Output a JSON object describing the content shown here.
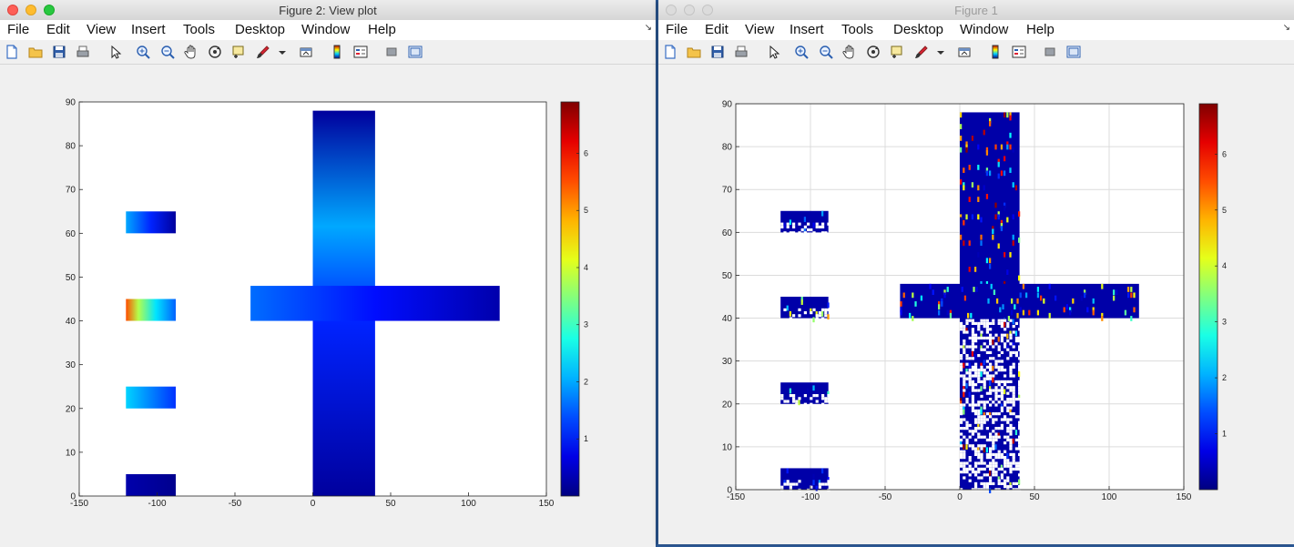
{
  "windows": [
    {
      "title": "Figure 2: View plot",
      "menus": [
        "File",
        "Edit",
        "View",
        "Insert",
        "Tools",
        "Desktop",
        "Window",
        "Help"
      ],
      "axes": {
        "x_ticks": [
          "-150",
          "-100",
          "-50",
          "0",
          "50",
          "100",
          "150"
        ],
        "y_ticks": [
          "0",
          "10",
          "20",
          "30",
          "40",
          "50",
          "60",
          "70",
          "80",
          "90"
        ],
        "grid": false
      },
      "colorbar_ticks": [
        "1",
        "2",
        "3",
        "4",
        "5",
        "6"
      ]
    },
    {
      "title": "Figure 1",
      "menus": [
        "File",
        "Edit",
        "View",
        "Insert",
        "Tools",
        "Desktop",
        "Window",
        "Help"
      ],
      "axes": {
        "x_ticks": [
          "-150",
          "-100",
          "-50",
          "0",
          "50",
          "100",
          "150"
        ],
        "y_ticks": [
          "0",
          "10",
          "20",
          "30",
          "40",
          "50",
          "60",
          "70",
          "80",
          "90"
        ],
        "grid": true
      },
      "colorbar_ticks": [
        "1",
        "2",
        "3",
        "4",
        "5",
        "6"
      ]
    }
  ],
  "toolbar_icons": [
    "new-figure-icon",
    "open-file-icon",
    "save-icon",
    "print-icon",
    "pointer-icon",
    "zoom-in-icon",
    "zoom-out-icon",
    "pan-icon",
    "rotate-3d-icon",
    "data-cursor-icon",
    "brush-icon",
    "brush-dropdown-icon",
    "link-plot-icon",
    "insert-colorbar-icon",
    "insert-legend-icon",
    "hide-plot-tools-icon",
    "show-plot-tools-icon"
  ],
  "chart_data": [
    {
      "type": "heatmap",
      "title": "",
      "xlabel": "",
      "ylabel": "",
      "xlim": [
        -150,
        150
      ],
      "ylim": [
        0,
        90
      ],
      "clim": [
        0,
        6.9
      ],
      "colormap": "jet",
      "grid": false,
      "regions": [
        {
          "x": [
            -120,
            -88
          ],
          "y": [
            0,
            5
          ],
          "value_range": [
            0.1,
            0.3
          ]
        },
        {
          "x": [
            -120,
            -88
          ],
          "y": [
            20,
            25
          ],
          "value_range": [
            1.2,
            2.3
          ]
        },
        {
          "x": [
            -120,
            -88
          ],
          "y": [
            40,
            45
          ],
          "value_range": [
            1.5,
            5.5
          ]
        },
        {
          "x": [
            -120,
            -88
          ],
          "y": [
            60,
            65
          ],
          "value_range": [
            0.2,
            2.0
          ]
        },
        {
          "x": [
            0,
            40
          ],
          "y": [
            0,
            88
          ],
          "value_range": [
            0.2,
            2.0
          ]
        },
        {
          "x": [
            -40,
            120
          ],
          "y": [
            40,
            48
          ],
          "value_range": [
            0.3,
            1.6
          ]
        }
      ]
    },
    {
      "type": "heatmap",
      "title": "",
      "xlabel": "",
      "ylabel": "",
      "xlim": [
        -150,
        150
      ],
      "ylim": [
        0,
        90
      ],
      "clim": [
        0,
        6.9
      ],
      "colormap": "jet",
      "grid": true,
      "regions": [
        {
          "x": [
            -120,
            -88
          ],
          "y": [
            0,
            5
          ],
          "value_range": [
            0.2,
            2.0
          ]
        },
        {
          "x": [
            -120,
            -88
          ],
          "y": [
            20,
            25
          ],
          "value_range": [
            0.2,
            4.0
          ]
        },
        {
          "x": [
            -120,
            -88
          ],
          "y": [
            40,
            45
          ],
          "value_range": [
            0.2,
            5.0
          ]
        },
        {
          "x": [
            -120,
            -88
          ],
          "y": [
            60,
            65
          ],
          "value_range": [
            0.2,
            2.5
          ]
        },
        {
          "x": [
            0,
            40
          ],
          "y": [
            0,
            88
          ],
          "value_range": [
            0.2,
            6.9
          ]
        },
        {
          "x": [
            -40,
            120
          ],
          "y": [
            40,
            48
          ],
          "value_range": [
            0.2,
            6.0
          ]
        }
      ]
    }
  ]
}
